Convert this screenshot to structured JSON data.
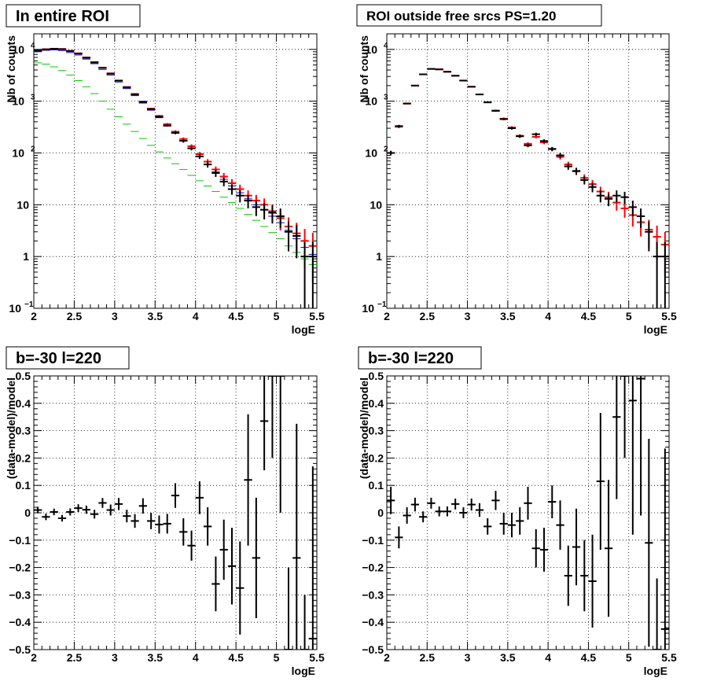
{
  "chart_data": [
    {
      "type": "scatter",
      "title": "In entire ROI",
      "xlabel": "logE",
      "ylabel": "Nb of counts",
      "yscale": "log",
      "xlim": [
        2,
        5.5
      ],
      "ylim": [
        0.1,
        20000
      ],
      "x_ticks": [
        "2",
        "2.5",
        "3",
        "3.5",
        "4",
        "4.5",
        "5",
        "5.5"
      ],
      "y_ticks": [
        {
          "v": 0.1,
          "base": "10",
          "exp": "−1"
        },
        {
          "v": 1,
          "base": "1",
          "exp": ""
        },
        {
          "v": 10,
          "base": "10",
          "exp": ""
        },
        {
          "v": 100,
          "base": "10",
          "exp": "2"
        },
        {
          "v": 1000,
          "base": "10",
          "exp": "3"
        },
        {
          "v": 10000,
          "base": "10",
          "exp": "4"
        }
      ],
      "grid": true,
      "colors": {
        "data": "#000000",
        "model": "#ff0000",
        "component_blue": "#0000cc",
        "component_green": "#00cc00"
      },
      "series": [
        {
          "x": [
            2.05,
            2.15,
            2.25,
            2.35,
            2.45,
            2.55,
            2.65,
            2.75,
            2.85,
            2.95,
            3.05,
            3.15,
            3.25,
            3.35,
            3.45,
            3.55,
            3.65,
            3.75,
            3.85,
            3.95,
            4.05,
            4.15,
            4.25,
            4.35,
            4.45,
            4.55,
            4.65,
            4.75,
            4.85,
            4.95,
            5.05,
            5.15,
            5.25,
            5.35,
            5.45
          ],
          "y": [
            9500,
            10000,
            10300,
            10100,
            9300,
            8300,
            6900,
            5600,
            4400,
            3400,
            2500,
            1850,
            1350,
            970,
            700,
            500,
            340,
            245,
            172,
            123,
            86,
            60,
            41,
            28,
            20,
            15,
            12,
            9,
            8,
            7,
            6,
            3,
            2.5,
            1,
            1
          ],
          "yerr_rel": [
            0.01,
            0.01,
            0.01,
            0.01,
            0.01,
            0.01,
            0.01,
            0.01,
            0.02,
            0.02,
            0.02,
            0.02,
            0.03,
            0.03,
            0.04,
            0.04,
            0.05,
            0.06,
            0.08,
            0.09,
            0.11,
            0.13,
            0.16,
            0.19,
            0.22,
            0.26,
            0.29,
            0.33,
            0.35,
            0.38,
            0.41,
            0.58,
            0.63,
            0.9,
            0.9
          ]
        },
        {
          "x": [
            2.05,
            2.15,
            2.25,
            2.35,
            2.45,
            2.55,
            2.65,
            2.75,
            2.85,
            2.95,
            3.05,
            3.15,
            3.25,
            3.35,
            3.45,
            3.55,
            3.65,
            3.75,
            3.85,
            3.95,
            4.05,
            4.15,
            4.25,
            4.35,
            4.45,
            4.55,
            4.65,
            4.75,
            4.85,
            4.95,
            5.05,
            5.15,
            5.25,
            5.35,
            5.45
          ],
          "y": [
            9400,
            10100,
            10300,
            10200,
            9400,
            8400,
            7000,
            5700,
            4450,
            3450,
            2500,
            1880,
            1380,
            980,
            720,
            520,
            360,
            258,
            186,
            135,
            95,
            68,
            48,
            35,
            26,
            20,
            15,
            12,
            10,
            7.5,
            5.5,
            3.8,
            2.8,
            2,
            1.6
          ],
          "yerr_rel": [
            0.01,
            0.01,
            0.01,
            0.01,
            0.01,
            0.01,
            0.01,
            0.01,
            0.02,
            0.02,
            0.02,
            0.02,
            0.03,
            0.03,
            0.04,
            0.04,
            0.05,
            0.06,
            0.07,
            0.09,
            0.1,
            0.12,
            0.14,
            0.17,
            0.2,
            0.22,
            0.26,
            0.29,
            0.32,
            0.36,
            0.42,
            0.5,
            0.6,
            0.7,
            0.8
          ]
        },
        {
          "x": [
            2.05,
            2.15,
            2.25,
            2.35,
            2.45,
            2.55,
            2.65,
            2.75,
            2.85,
            2.95,
            3.05,
            3.15,
            3.25,
            3.35,
            3.45,
            3.55,
            3.65,
            3.75,
            3.85,
            3.95,
            4.05,
            4.15,
            4.25,
            4.35,
            4.45,
            4.55,
            4.65,
            4.75,
            4.85,
            4.95,
            5.05,
            5.15,
            5.25,
            5.35,
            5.45
          ],
          "y": [
            9000,
            9600,
            9800,
            9500,
            8700,
            7800,
            6500,
            5300,
            4100,
            3200,
            2350,
            1750,
            1280,
            920,
            670,
            480,
            330,
            240,
            170,
            122,
            86,
            61,
            43,
            31,
            23,
            17,
            13,
            10,
            8,
            6,
            4.5,
            3.2,
            2.2,
            1.5,
            1.1
          ]
        },
        {
          "x": [
            2.05,
            2.15,
            2.25,
            2.35,
            2.45,
            2.55,
            2.65,
            2.75,
            2.85,
            2.95,
            3.05,
            3.15,
            3.25,
            3.35,
            3.45,
            3.55,
            3.65,
            3.75,
            3.85,
            3.95,
            4.05,
            4.15,
            4.25,
            4.35,
            4.45,
            4.55,
            4.65,
            4.75,
            4.85,
            4.95,
            5.05,
            5.15,
            5.25,
            5.35,
            5.45
          ],
          "y": [
            5500,
            5200,
            4600,
            3900,
            3200,
            2500,
            1900,
            1400,
            1000,
            700,
            500,
            360,
            260,
            190,
            140,
            105,
            80,
            62,
            48,
            37,
            29,
            23,
            18,
            14,
            11,
            8.5,
            6.5,
            5,
            3.8,
            2.9,
            2.2,
            1.6,
            1.2,
            0.9,
            0.7
          ]
        }
      ]
    },
    {
      "type": "scatter",
      "title": "ROI outside free srcs PS=1.20",
      "xlabel": "logE",
      "ylabel": "Nb of counts",
      "yscale": "log",
      "xlim": [
        2,
        5.5
      ],
      "ylim": [
        0.1,
        20000
      ],
      "x_ticks": [
        "2",
        "2.5",
        "3",
        "3.5",
        "4",
        "4.5",
        "5",
        "5.5"
      ],
      "y_ticks": [
        {
          "v": 0.1,
          "base": "10",
          "exp": "−1"
        },
        {
          "v": 1,
          "base": "1",
          "exp": ""
        },
        {
          "v": 10,
          "base": "10",
          "exp": ""
        },
        {
          "v": 100,
          "base": "10",
          "exp": "2"
        },
        {
          "v": 1000,
          "base": "10",
          "exp": "3"
        },
        {
          "v": 10000,
          "base": "10",
          "exp": "4"
        }
      ],
      "grid": true,
      "series": [
        {
          "x": [
            2.05,
            2.15,
            2.25,
            2.35,
            2.45,
            2.55,
            2.65,
            2.75,
            2.85,
            2.95,
            3.05,
            3.15,
            3.25,
            3.35,
            3.45,
            3.55,
            3.65,
            3.75,
            3.85,
            3.95,
            4.05,
            4.15,
            4.25,
            4.35,
            4.45,
            4.55,
            4.65,
            4.75,
            4.85,
            4.95,
            5.05,
            5.15,
            5.25,
            5.35,
            5.45
          ],
          "y": [
            100,
            330,
            900,
            2000,
            3300,
            4200,
            4100,
            3700,
            3100,
            2500,
            1900,
            1350,
            950,
            650,
            450,
            300,
            210,
            140,
            230,
            170,
            120,
            90,
            55,
            45,
            30,
            22,
            15,
            13,
            15,
            14,
            9,
            6,
            3,
            1,
            1
          ],
          "yerr_rel": [
            0.1,
            0.06,
            0.03,
            0.02,
            0.02,
            0.02,
            0.02,
            0.02,
            0.02,
            0.02,
            0.02,
            0.03,
            0.03,
            0.04,
            0.05,
            0.06,
            0.07,
            0.08,
            0.07,
            0.08,
            0.09,
            0.11,
            0.14,
            0.15,
            0.18,
            0.21,
            0.26,
            0.28,
            0.26,
            0.27,
            0.33,
            0.41,
            0.58,
            0.9,
            0.9
          ]
        },
        {
          "x": [
            2.05,
            2.15,
            2.25,
            2.35,
            2.45,
            2.55,
            2.65,
            2.75,
            2.85,
            2.95,
            3.05,
            3.15,
            3.25,
            3.35,
            3.45,
            3.55,
            3.65,
            3.75,
            3.85,
            3.95,
            4.05,
            4.15,
            4.25,
            4.35,
            4.45,
            4.55,
            4.65,
            4.75,
            4.85,
            4.95,
            5.05,
            5.15,
            5.25,
            5.35,
            5.45
          ],
          "y": [
            100,
            320,
            900,
            2000,
            3300,
            4200,
            4150,
            3700,
            3100,
            2500,
            1900,
            1350,
            950,
            660,
            460,
            310,
            215,
            150,
            205,
            160,
            118,
            84,
            60,
            44,
            33,
            25,
            18,
            14,
            11,
            8.5,
            6.3,
            4.6,
            3.3,
            2.4,
            1.7
          ],
          "yerr_rel": [
            0.1,
            0.06,
            0.03,
            0.02,
            0.02,
            0.02,
            0.02,
            0.02,
            0.02,
            0.02,
            0.02,
            0.03,
            0.03,
            0.04,
            0.05,
            0.06,
            0.07,
            0.08,
            0.07,
            0.08,
            0.09,
            0.11,
            0.13,
            0.15,
            0.17,
            0.2,
            0.24,
            0.27,
            0.3,
            0.34,
            0.4,
            0.47,
            0.55,
            0.65,
            0.75
          ]
        }
      ]
    },
    {
      "type": "scatter",
      "title": "b=-30 l=220",
      "xlabel": "logE",
      "ylabel": "(data-model)/model",
      "xlim": [
        2,
        5.5
      ],
      "ylim": [
        -0.5,
        0.5
      ],
      "x_ticks": [
        "2",
        "2.5",
        "3",
        "3.5",
        "4",
        "4.5",
        "5",
        "5.5"
      ],
      "y_ticks": [
        {
          "v": -0.5,
          "label": "−0.5"
        },
        {
          "v": -0.4,
          "label": "−0.4"
        },
        {
          "v": -0.3,
          "label": "−0.3"
        },
        {
          "v": -0.2,
          "label": "−0.2"
        },
        {
          "v": -0.1,
          "label": "−0.1"
        },
        {
          "v": 0,
          "label": "0"
        },
        {
          "v": 0.1,
          "label": "0.1"
        },
        {
          "v": 0.2,
          "label": "0.2"
        },
        {
          "v": 0.3,
          "label": "0.3"
        },
        {
          "v": 0.4,
          "label": "0.4"
        },
        {
          "v": 0.5,
          "label": "0.5"
        }
      ],
      "grid": true,
      "series": [
        {
          "x": [
            2.05,
            2.15,
            2.25,
            2.35,
            2.45,
            2.55,
            2.65,
            2.75,
            2.85,
            2.95,
            3.05,
            3.15,
            3.25,
            3.35,
            3.45,
            3.55,
            3.65,
            3.75,
            3.85,
            3.95,
            4.05,
            4.15,
            4.25,
            4.35,
            4.45,
            4.55,
            4.65,
            4.75,
            4.85,
            4.95,
            5.05,
            5.15,
            5.25,
            5.35,
            5.45
          ],
          "y": [
            0.01,
            -0.015,
            0.003,
            -0.02,
            0.003,
            0.017,
            0.011,
            -0.005,
            0.036,
            0.01,
            0.032,
            -0.012,
            -0.03,
            0.025,
            -0.03,
            -0.043,
            -0.04,
            0.063,
            -0.07,
            -0.12,
            0.055,
            -0.05,
            -0.26,
            -0.135,
            -0.195,
            -0.275,
            0.12,
            -0.165,
            0.335,
            0.5,
            0.5,
            -0.5,
            -0.165,
            -0.5,
            -0.46
          ],
          "yerr": [
            0.012,
            0.012,
            0.012,
            0.012,
            0.013,
            0.014,
            0.015,
            0.016,
            0.018,
            0.02,
            0.022,
            0.023,
            0.025,
            0.028,
            0.03,
            0.033,
            0.036,
            0.045,
            0.05,
            0.055,
            0.06,
            0.07,
            0.1,
            0.11,
            0.14,
            0.17,
            0.24,
            0.22,
            0.18,
            0.3,
            0.5,
            0.3,
            0.49,
            0.2,
            0.63
          ]
        }
      ]
    },
    {
      "type": "scatter",
      "title": "b=-30 l=220",
      "xlabel": "logE",
      "ylabel": "(data-model)/model",
      "xlim": [
        2,
        5.5
      ],
      "ylim": [
        -0.5,
        0.5
      ],
      "x_ticks": [
        "2",
        "2.5",
        "3",
        "3.5",
        "4",
        "4.5",
        "5",
        "5.5"
      ],
      "y_ticks": [
        {
          "v": -0.5,
          "label": "−0.5"
        },
        {
          "v": -0.4,
          "label": "−0.4"
        },
        {
          "v": -0.3,
          "label": "−0.3"
        },
        {
          "v": -0.2,
          "label": "−0.2"
        },
        {
          "v": -0.1,
          "label": "−0.1"
        },
        {
          "v": 0,
          "label": "0"
        },
        {
          "v": 0.1,
          "label": "0.1"
        },
        {
          "v": 0.2,
          "label": "0.2"
        },
        {
          "v": 0.3,
          "label": "0.3"
        },
        {
          "v": 0.4,
          "label": "0.4"
        },
        {
          "v": 0.5,
          "label": "0.5"
        }
      ],
      "grid": true,
      "series": [
        {
          "x": [
            2.05,
            2.15,
            2.25,
            2.35,
            2.45,
            2.55,
            2.65,
            2.75,
            2.85,
            2.95,
            3.05,
            3.15,
            3.25,
            3.35,
            3.45,
            3.55,
            3.65,
            3.75,
            3.85,
            3.95,
            4.05,
            4.15,
            4.25,
            4.35,
            4.45,
            4.55,
            4.65,
            4.75,
            4.85,
            4.95,
            5.05,
            5.15,
            5.25,
            5.35,
            5.45
          ],
          "y": [
            0.045,
            -0.09,
            -0.01,
            0.03,
            -0.015,
            0.035,
            0.005,
            0.005,
            0.032,
            0.0,
            0.03,
            0.01,
            -0.05,
            0.045,
            -0.04,
            -0.045,
            -0.03,
            0.035,
            -0.13,
            -0.135,
            0.04,
            -0.045,
            -0.23,
            -0.125,
            -0.23,
            -0.25,
            0.115,
            -0.13,
            0.35,
            0.5,
            0.41,
            0.49,
            -0.11,
            -0.5,
            -0.425
          ],
          "yerr": [
            0.05,
            0.04,
            0.03,
            0.025,
            0.02,
            0.02,
            0.018,
            0.018,
            0.02,
            0.02,
            0.022,
            0.025,
            0.03,
            0.035,
            0.04,
            0.045,
            0.05,
            0.06,
            0.07,
            0.08,
            0.06,
            0.09,
            0.11,
            0.14,
            0.13,
            0.17,
            0.25,
            0.25,
            0.3,
            0.3,
            0.49,
            0.5,
            0.38,
            0.26,
            0.66
          ]
        }
      ]
    }
  ]
}
